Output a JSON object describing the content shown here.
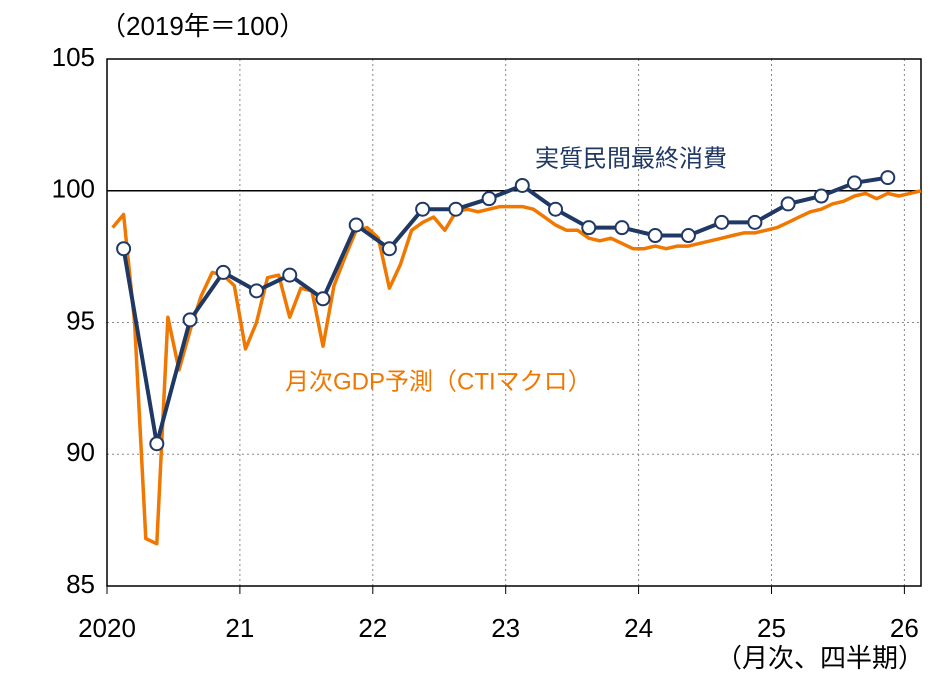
{
  "chart_data": {
    "type": "line",
    "unit_note": "（2019年＝100）",
    "x_note": "（月次、四半期）",
    "xlim": [
      2020,
      2026.125
    ],
    "xticks": [
      {
        "value": 2020,
        "label": "2020"
      },
      {
        "value": 2021,
        "label": "21"
      },
      {
        "value": 2022,
        "label": "22"
      },
      {
        "value": 2023,
        "label": "23"
      },
      {
        "value": 2024,
        "label": "24"
      },
      {
        "value": 2025,
        "label": "25"
      },
      {
        "value": 2026,
        "label": "26"
      }
    ],
    "ylim": [
      85,
      105
    ],
    "yticks": [
      85,
      90,
      95,
      100,
      105
    ],
    "hline": 100,
    "grid": true,
    "series": [
      {
        "name": "月次GDP予測（CTIマクロ）",
        "color": "#f07800",
        "markers": false,
        "x": [
          2020.042,
          2020.125,
          2020.208,
          2020.292,
          2020.375,
          2020.458,
          2020.542,
          2020.625,
          2020.708,
          2020.792,
          2020.875,
          2020.958,
          2021.042,
          2021.125,
          2021.208,
          2021.292,
          2021.375,
          2021.458,
          2021.542,
          2021.625,
          2021.708,
          2021.792,
          2021.875,
          2021.958,
          2022.042,
          2022.125,
          2022.208,
          2022.292,
          2022.375,
          2022.458,
          2022.542,
          2022.625,
          2022.708,
          2022.792,
          2022.875,
          2022.958,
          2023.042,
          2023.125,
          2023.208,
          2023.292,
          2023.375,
          2023.458,
          2023.542,
          2023.625,
          2023.708,
          2023.792,
          2023.875,
          2023.958,
          2024.042,
          2024.125,
          2024.208,
          2024.292,
          2024.375,
          2024.458,
          2024.542,
          2024.625,
          2024.708,
          2024.792,
          2024.875,
          2024.958,
          2025.042,
          2025.125,
          2025.208,
          2025.292,
          2025.375,
          2025.458,
          2025.542,
          2025.625,
          2025.708,
          2025.792,
          2025.875,
          2025.958,
          2026.042,
          2026.125
        ],
        "values": [
          98.6,
          99.1,
          95.0,
          86.8,
          86.6,
          95.2,
          93.2,
          94.7,
          96.0,
          96.9,
          96.8,
          96.4,
          94.0,
          95.0,
          96.7,
          96.8,
          95.2,
          96.3,
          96.2,
          94.1,
          96.4,
          97.5,
          98.5,
          98.6,
          98.2,
          96.3,
          97.2,
          98.5,
          98.8,
          99.0,
          98.5,
          99.2,
          99.3,
          99.2,
          99.3,
          99.4,
          99.4,
          99.4,
          99.3,
          99.0,
          98.7,
          98.5,
          98.5,
          98.2,
          98.1,
          98.2,
          98.0,
          97.8,
          97.8,
          97.9,
          97.8,
          97.9,
          97.9,
          98.0,
          98.1,
          98.2,
          98.3,
          98.4,
          98.4,
          98.5,
          98.6,
          98.8,
          99.0,
          99.2,
          99.3,
          99.5,
          99.6,
          99.8,
          99.9,
          99.7,
          99.9,
          99.8,
          99.9,
          100.0
        ]
      },
      {
        "name": "実質民間最終消費",
        "color": "#1f3864",
        "markers": true,
        "x": [
          2020.125,
          2020.375,
          2020.625,
          2020.875,
          2021.125,
          2021.375,
          2021.625,
          2021.875,
          2022.125,
          2022.375,
          2022.625,
          2022.875,
          2023.125,
          2023.375,
          2023.625,
          2023.875,
          2024.125,
          2024.375,
          2024.625,
          2024.875,
          2025.125,
          2025.375,
          2025.625,
          2025.875
        ],
        "values": [
          97.8,
          90.4,
          95.1,
          96.9,
          96.2,
          96.8,
          95.9,
          98.7,
          97.8,
          99.3,
          99.3,
          99.7,
          100.2,
          99.3,
          98.6,
          98.6,
          98.3,
          98.3,
          98.8,
          98.8,
          99.5,
          99.8,
          100.3,
          100.5
        ]
      }
    ]
  }
}
